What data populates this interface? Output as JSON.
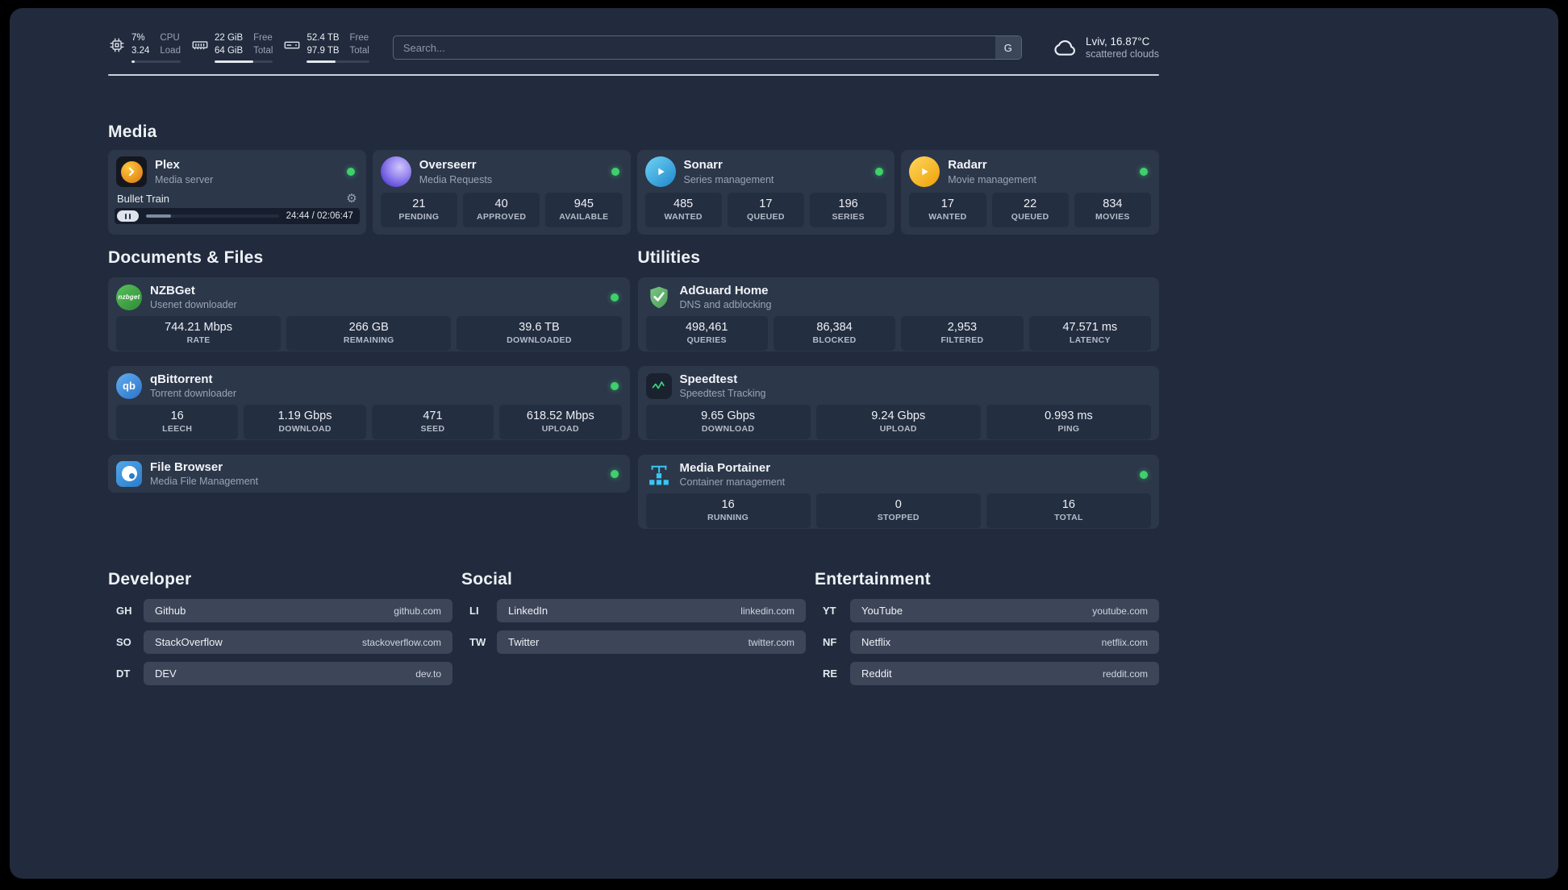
{
  "colors": {
    "bg": "#212b3d",
    "card": "#2c374a",
    "tile": "#242e41",
    "pill": "#3d4659",
    "online": "#3ed06c",
    "divider": "#ccd2da",
    "plex": "#e8a020",
    "overseerr": "#8c7ae6",
    "sonarr": "#35a8e0",
    "radarr": "#f7b42c",
    "nzbget": "#3fae4a",
    "qbittorrent": "#3f8fd8",
    "filebrowser": "#3f93d8",
    "adguard": "#67b279",
    "speedtest": "#3fd97e",
    "portainer": "#38c6f4"
  },
  "glyphs": {
    "gear": "⚙"
  },
  "topbar": {
    "cpu": {
      "value_top": "7%",
      "value_bottom": "3.24",
      "label_top": "CPU",
      "label_bottom": "Load",
      "bar_percent": 7
    },
    "ram": {
      "value_top": "22 GiB",
      "value_bottom": "64 GiB",
      "label_top": "Free",
      "label_bottom": "Total",
      "bar_percent": 66
    },
    "disk": {
      "value_top": "52.4 TB",
      "value_bottom": "97.9 TB",
      "label_top": "Free",
      "label_bottom": "Total",
      "bar_percent": 46
    },
    "search": {
      "placeholder": "Search...",
      "engine_button": "G"
    },
    "weather": {
      "location": "Lviv, 16.87°C",
      "condition": "scattered clouds"
    }
  },
  "sections": {
    "media": {
      "title": "Media"
    },
    "documents": {
      "title": "Documents & Files"
    },
    "utilities": {
      "title": "Utilities"
    },
    "developer": {
      "title": "Developer"
    },
    "social": {
      "title": "Social"
    },
    "entertainment": {
      "title": "Entertainment"
    }
  },
  "apps": {
    "plex": {
      "name": "Plex",
      "subtitle": "Media server",
      "status": "online",
      "player": {
        "title": "Bullet Train",
        "time": "24:44 / 02:06:47",
        "progress_percent": 19
      }
    },
    "overseerr": {
      "name": "Overseerr",
      "subtitle": "Media Requests",
      "status": "online",
      "stats": [
        {
          "value": "21",
          "label": "PENDING"
        },
        {
          "value": "40",
          "label": "APPROVED"
        },
        {
          "value": "945",
          "label": "AVAILABLE"
        }
      ]
    },
    "sonarr": {
      "name": "Sonarr",
      "subtitle": "Series management",
      "status": "online",
      "stats": [
        {
          "value": "485",
          "label": "WANTED"
        },
        {
          "value": "17",
          "label": "QUEUED"
        },
        {
          "value": "196",
          "label": "SERIES"
        }
      ]
    },
    "radarr": {
      "name": "Radarr",
      "subtitle": "Movie management",
      "status": "online",
      "stats": [
        {
          "value": "17",
          "label": "WANTED"
        },
        {
          "value": "22",
          "label": "QUEUED"
        },
        {
          "value": "834",
          "label": "MOVIES"
        }
      ]
    },
    "nzbget": {
      "name": "NZBGet",
      "subtitle": "Usenet downloader",
      "status": "online",
      "icon_text": "nzbget",
      "stats": [
        {
          "value": "744.21 Mbps",
          "label": "RATE"
        },
        {
          "value": "266 GB",
          "label": "REMAINING"
        },
        {
          "value": "39.6 TB",
          "label": "DOWNLOADED"
        }
      ]
    },
    "qbittorrent": {
      "name": "qBittorrent",
      "subtitle": "Torrent downloader",
      "status": "online",
      "icon_text": "qb",
      "stats": [
        {
          "value": "16",
          "label": "LEECH"
        },
        {
          "value": "1.19 Gbps",
          "label": "DOWNLOAD"
        },
        {
          "value": "471",
          "label": "SEED"
        },
        {
          "value": "618.52 Mbps",
          "label": "UPLOAD"
        }
      ]
    },
    "filebrowser": {
      "name": "File Browser",
      "subtitle": "Media File Management",
      "status": "online"
    },
    "adguard": {
      "name": "AdGuard Home",
      "subtitle": "DNS and adblocking",
      "stats": [
        {
          "value": "498,461",
          "label": "QUERIES"
        },
        {
          "value": "86,384",
          "label": "BLOCKED"
        },
        {
          "value": "2,953",
          "label": "FILTERED"
        },
        {
          "value": "47.571 ms",
          "label": "LATENCY"
        }
      ]
    },
    "speedtest": {
      "name": "Speedtest",
      "subtitle": "Speedtest Tracking",
      "stats": [
        {
          "value": "9.65 Gbps",
          "label": "DOWNLOAD"
        },
        {
          "value": "9.24 Gbps",
          "label": "UPLOAD"
        },
        {
          "value": "0.993 ms",
          "label": "PING"
        }
      ]
    },
    "portainer": {
      "name": "Media Portainer",
      "subtitle": "Container management",
      "status": "online",
      "stats": [
        {
          "value": "16",
          "label": "RUNNING"
        },
        {
          "value": "0",
          "label": "STOPPED"
        },
        {
          "value": "16",
          "label": "TOTAL"
        }
      ]
    }
  },
  "bookmarks": {
    "developer": [
      {
        "abbr": "GH",
        "name": "Github",
        "url": "github.com"
      },
      {
        "abbr": "SO",
        "name": "StackOverflow",
        "url": "stackoverflow.com"
      },
      {
        "abbr": "DT",
        "name": "DEV",
        "url": "dev.to"
      }
    ],
    "social": [
      {
        "abbr": "LI",
        "name": "LinkedIn",
        "url": "linkedin.com"
      },
      {
        "abbr": "TW",
        "name": "Twitter",
        "url": "twitter.com"
      }
    ],
    "entertainment": [
      {
        "abbr": "YT",
        "name": "YouTube",
        "url": "youtube.com"
      },
      {
        "abbr": "NF",
        "name": "Netflix",
        "url": "netflix.com"
      },
      {
        "abbr": "RE",
        "name": "Reddit",
        "url": "reddit.com"
      }
    ]
  }
}
